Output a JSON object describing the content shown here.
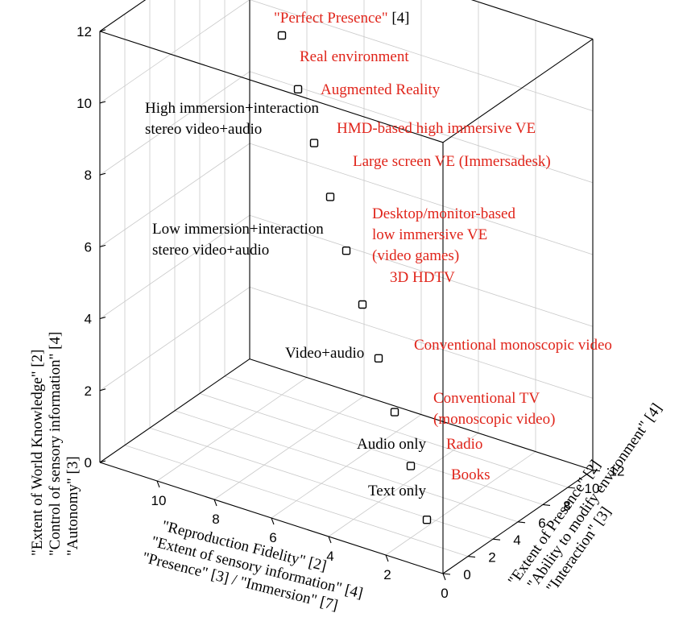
{
  "chart_data": {
    "type": "scatter",
    "projection": "3d",
    "grid": true,
    "axes": {
      "x": {
        "label_lines": [
          "\"Reproduction Fidelity\" [2]",
          "\"Extent of sensory information\" [4]",
          "\"Presence\" [3] / \"Immersion\" [7]"
        ],
        "range": [
          0,
          12
        ],
        "ticks": [
          0,
          2,
          4,
          6,
          8,
          10
        ]
      },
      "y": {
        "label_lines": [
          "\"Extent of Presence\" [2]",
          "\"Ability to modify environment\" [4]",
          "\"Interaction\" [3]"
        ],
        "range": [
          0,
          12
        ],
        "ticks": [
          0,
          2,
          4,
          6,
          8,
          10,
          12
        ]
      },
      "z": {
        "label_lines": [
          "\"Extent of World Knowledge\" [2]",
          "\"Control of sensory information\" [4]",
          "\"Autonomy\" [3]"
        ],
        "range": [
          0,
          12
        ],
        "ticks": [
          0,
          2,
          4,
          6,
          8,
          10,
          12
        ]
      }
    },
    "points": [
      {
        "x": 1,
        "y": 1,
        "z": 1
      },
      {
        "x": 2,
        "y": 2,
        "z": 2
      },
      {
        "x": 3,
        "y": 3,
        "z": 3
      },
      {
        "x": 4,
        "y": 4,
        "z": 4
      },
      {
        "x": 5,
        "y": 5,
        "z": 5
      },
      {
        "x": 6,
        "y": 6,
        "z": 6
      },
      {
        "x": 7,
        "y": 7,
        "z": 7
      },
      {
        "x": 8,
        "y": 8,
        "z": 8
      },
      {
        "x": 9,
        "y": 9,
        "z": 9
      },
      {
        "x": 10,
        "y": 10,
        "z": 10
      }
    ],
    "annotations_red": [
      "Real environment",
      "Augmented Reality",
      "HMD-based high immersive VE",
      "Large screen VE (Immersadesk)",
      "Desktop/monitor-based",
      "low immersive VE",
      "(video games)",
      "3D HDTV",
      "Conventional monoscopic video",
      "Conventional TV",
      "(monoscopic video)",
      "Radio",
      "Books"
    ],
    "annotations_black": [
      "High immersion+interaction",
      "stereo video+audio",
      "Low immersion+interaction",
      "stereo video+audio",
      "Video+audio",
      "Audio only",
      "Text only"
    ],
    "top_annotation": {
      "text": "\"Perfect Presence\"",
      "ref": " [4]"
    },
    "colors": {
      "annotation_red": "#e0241a",
      "annotation_black": "#000000",
      "grid": "#c9c9c9"
    }
  }
}
